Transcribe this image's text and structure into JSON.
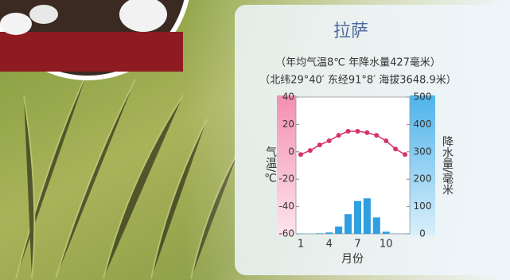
{
  "chart_data": {
    "type": "combo",
    "title": "拉萨",
    "subtitles": [
      "（年均气温8℃  年降水量427毫米）",
      "（北纬29°40′ 东经91°8′ 海拔3648.9米）"
    ],
    "categories": [
      "1",
      null,
      null,
      "4",
      null,
      null,
      "7",
      null,
      null,
      "10",
      null,
      null
    ],
    "xlabel": "月份",
    "ylabel": "气温/℃",
    "y2label": "降水量/毫米",
    "ylim": [
      -60,
      40
    ],
    "yticks": [
      -60,
      -40,
      -20,
      0,
      20,
      40
    ],
    "y2lim": [
      0,
      500
    ],
    "y2ticks": [
      0,
      100,
      200,
      300,
      400,
      500
    ],
    "series": [
      {
        "name": "气温",
        "type": "line",
        "color": "#d6336c",
        "values": [
          -2,
          1,
          5,
          8,
          12,
          15,
          15,
          14,
          12,
          8,
          2,
          -2
        ]
      },
      {
        "name": "降水量",
        "type": "bar",
        "axis": "y2",
        "color": "#2f9fe0",
        "values": [
          1,
          1,
          2,
          5,
          27,
          72,
          120,
          130,
          60,
          8,
          1,
          1
        ]
      }
    ]
  }
}
